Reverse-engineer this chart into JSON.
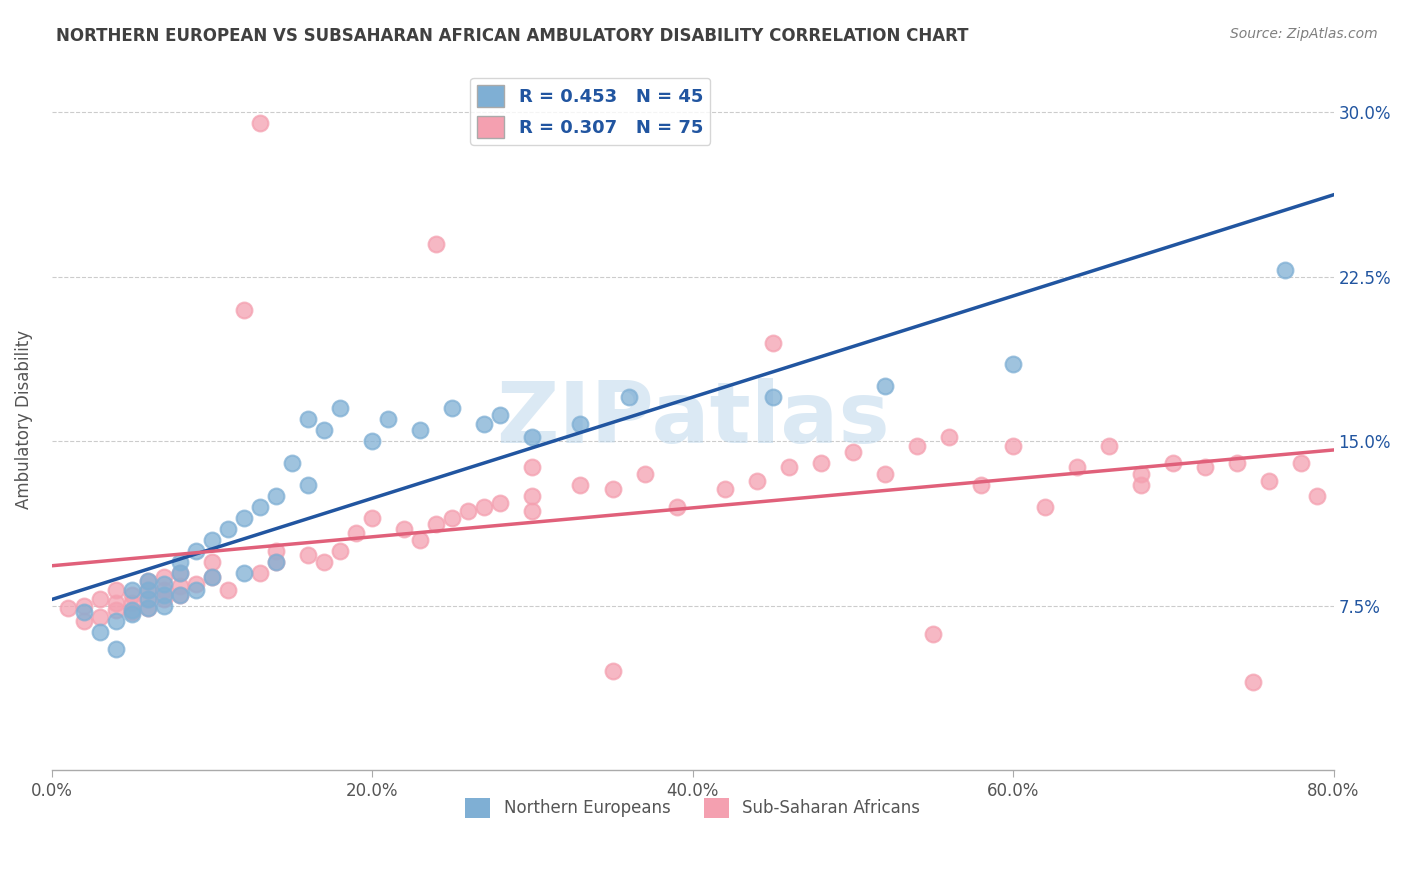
{
  "title": "NORTHERN EUROPEAN VS SUBSAHARAN AFRICAN AMBULATORY DISABILITY CORRELATION CHART",
  "source": "Source: ZipAtlas.com",
  "ylabel": "Ambulatory Disability",
  "xlabel": "",
  "watermark": "ZIPatlas",
  "xlim": [
    0.0,
    0.8
  ],
  "ylim": [
    0.0,
    0.32
  ],
  "xticks": [
    0.0,
    0.2,
    0.4,
    0.6,
    0.8
  ],
  "yticks": [
    0.075,
    0.15,
    0.225,
    0.3
  ],
  "ytick_labels": [
    "7.5%",
    "15.0%",
    "22.5%",
    "30.0%"
  ],
  "xtick_labels": [
    "0.0%",
    "20.0%",
    "40.0%",
    "60.0%",
    "80.0%"
  ],
  "blue_R": 0.453,
  "blue_N": 45,
  "pink_R": 0.307,
  "pink_N": 75,
  "blue_color": "#7fafd4",
  "pink_color": "#f4a0b0",
  "blue_line_color": "#2155a0",
  "pink_line_color": "#e0607a",
  "legend_text_color": "#2155a0",
  "title_color": "#404040",
  "source_color": "#808080",
  "grid_color": "#cccccc",
  "background_color": "#ffffff",
  "blue_x": [
    0.02,
    0.03,
    0.04,
    0.04,
    0.05,
    0.05,
    0.05,
    0.06,
    0.06,
    0.06,
    0.06,
    0.07,
    0.07,
    0.07,
    0.08,
    0.08,
    0.08,
    0.09,
    0.09,
    0.1,
    0.1,
    0.11,
    0.12,
    0.12,
    0.13,
    0.14,
    0.14,
    0.15,
    0.16,
    0.16,
    0.17,
    0.18,
    0.2,
    0.21,
    0.23,
    0.25,
    0.27,
    0.28,
    0.3,
    0.33,
    0.36,
    0.45,
    0.52,
    0.6,
    0.77
  ],
  "blue_y": [
    0.072,
    0.063,
    0.068,
    0.055,
    0.071,
    0.073,
    0.082,
    0.074,
    0.078,
    0.082,
    0.086,
    0.075,
    0.08,
    0.085,
    0.08,
    0.09,
    0.095,
    0.082,
    0.1,
    0.088,
    0.105,
    0.11,
    0.09,
    0.115,
    0.12,
    0.095,
    0.125,
    0.14,
    0.13,
    0.16,
    0.155,
    0.165,
    0.15,
    0.16,
    0.155,
    0.165,
    0.158,
    0.162,
    0.152,
    0.158,
    0.17,
    0.17,
    0.175,
    0.185,
    0.228
  ],
  "pink_x": [
    0.01,
    0.02,
    0.02,
    0.03,
    0.03,
    0.04,
    0.04,
    0.04,
    0.05,
    0.05,
    0.05,
    0.06,
    0.06,
    0.06,
    0.06,
    0.07,
    0.07,
    0.07,
    0.08,
    0.08,
    0.08,
    0.09,
    0.1,
    0.1,
    0.11,
    0.12,
    0.13,
    0.14,
    0.14,
    0.16,
    0.17,
    0.18,
    0.19,
    0.2,
    0.22,
    0.23,
    0.24,
    0.25,
    0.26,
    0.27,
    0.28,
    0.3,
    0.3,
    0.33,
    0.35,
    0.37,
    0.39,
    0.42,
    0.44,
    0.46,
    0.48,
    0.5,
    0.52,
    0.54,
    0.56,
    0.58,
    0.6,
    0.62,
    0.64,
    0.66,
    0.68,
    0.7,
    0.72,
    0.74,
    0.76,
    0.78,
    0.79,
    0.3,
    0.35,
    0.55,
    0.13,
    0.24,
    0.45,
    0.68,
    0.75
  ],
  "pink_y": [
    0.074,
    0.068,
    0.075,
    0.07,
    0.078,
    0.073,
    0.076,
    0.082,
    0.072,
    0.076,
    0.08,
    0.074,
    0.078,
    0.082,
    0.086,
    0.078,
    0.082,
    0.088,
    0.08,
    0.084,
    0.09,
    0.085,
    0.088,
    0.095,
    0.082,
    0.21,
    0.09,
    0.095,
    0.1,
    0.098,
    0.095,
    0.1,
    0.108,
    0.115,
    0.11,
    0.105,
    0.112,
    0.115,
    0.118,
    0.12,
    0.122,
    0.125,
    0.118,
    0.13,
    0.128,
    0.135,
    0.12,
    0.128,
    0.132,
    0.138,
    0.14,
    0.145,
    0.135,
    0.148,
    0.152,
    0.13,
    0.148,
    0.12,
    0.138,
    0.148,
    0.135,
    0.14,
    0.138,
    0.14,
    0.132,
    0.14,
    0.125,
    0.138,
    0.045,
    0.062,
    0.295,
    0.24,
    0.195,
    0.13,
    0.04
  ]
}
